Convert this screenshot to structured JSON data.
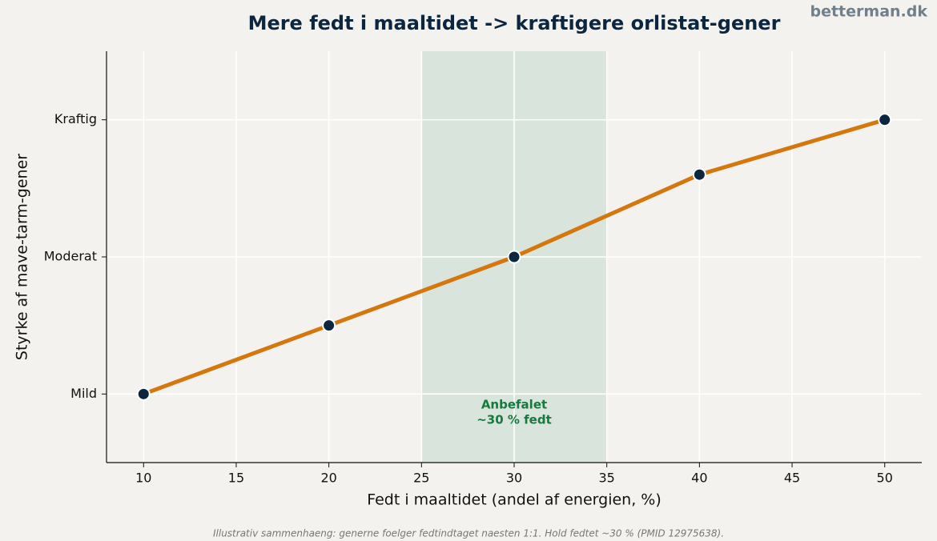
{
  "chart_data": {
    "type": "line",
    "title": "Mere fedt i maaltidet -> kraftigere orlistat-gener",
    "watermark": "betterman.dk",
    "x_label": "Fedt i maaltidet (andel af energien, %)",
    "y_label": "Styrke af mave-tarm-gener",
    "footnote": "Illustrativ sammenhaeng: generne foelger fedtindtaget naesten 1:1. Hold fedtet ~30 % (PMID 12975638).",
    "x": [
      10,
      20,
      30,
      40,
      50
    ],
    "series": [
      {
        "color": "#d4770c",
        "marker_color": "#0d2640",
        "values": [
          1,
          1.5,
          2,
          2.6,
          3
        ]
      }
    ],
    "xlim": [
      8,
      52
    ],
    "xticks": [
      10,
      15,
      20,
      25,
      30,
      35,
      40,
      45,
      50
    ],
    "ylim": [
      0.5,
      3.5
    ],
    "yticks": [
      {
        "value": 1,
        "label": "Mild"
      },
      {
        "value": 2,
        "label": "Moderat"
      },
      {
        "value": 3,
        "label": "Kraftig"
      }
    ],
    "grid": true,
    "shaded_region": {
      "x": [
        25,
        35
      ],
      "color": "#d9e4dc",
      "label": [
        "Anbefalet",
        "~30 % fedt"
      ],
      "label_color": "#157a3c"
    }
  }
}
